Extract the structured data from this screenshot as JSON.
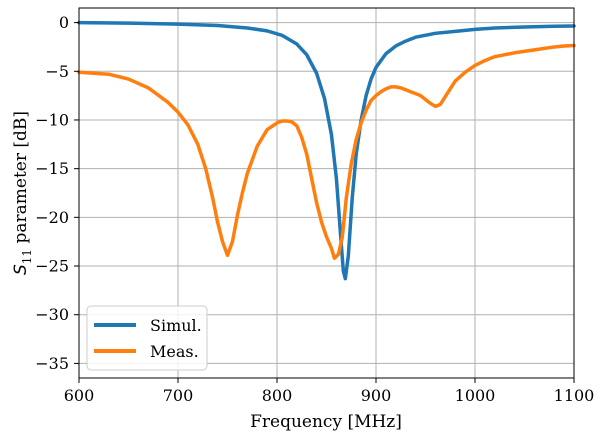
{
  "chart_data": {
    "type": "line",
    "title": "",
    "xlabel": "Frequency [MHz]",
    "ylabel_main": "S",
    "ylabel_sub": "11",
    "ylabel_rest": " parameter [dB]",
    "xlim": [
      600,
      1100
    ],
    "ylim": [
      -36.5,
      1.5
    ],
    "xticks": [
      600,
      700,
      800,
      900,
      1000,
      1100
    ],
    "yticks": [
      0,
      -5,
      -10,
      -15,
      -20,
      -25,
      -30,
      -35
    ],
    "xtick_labels": [
      "600",
      "700",
      "800",
      "900",
      "1000",
      "1100"
    ],
    "ytick_labels": [
      "0",
      "−5",
      "−10",
      "−15",
      "−20",
      "−25",
      "−30",
      "−35"
    ],
    "grid": true,
    "legend_position": "bottom-left",
    "series": [
      {
        "name": "Simul.",
        "color": "#1f77b4",
        "x": [
          600,
          650,
          700,
          740,
          770,
          790,
          805,
          820,
          830,
          840,
          848,
          855,
          860,
          864,
          867,
          869,
          872,
          876,
          880,
          885,
          890,
          895,
          900,
          910,
          920,
          930,
          940,
          960,
          980,
          1000,
          1020,
          1050,
          1080,
          1100
        ],
        "y": [
          0.0,
          -0.05,
          -0.15,
          -0.3,
          -0.55,
          -0.85,
          -1.3,
          -2.2,
          -3.3,
          -5.2,
          -7.8,
          -11.5,
          -16.0,
          -21.5,
          -25.5,
          -26.3,
          -24.0,
          -18.0,
          -13.5,
          -10.0,
          -7.5,
          -5.8,
          -4.6,
          -3.2,
          -2.4,
          -1.9,
          -1.5,
          -1.1,
          -0.9,
          -0.7,
          -0.55,
          -0.45,
          -0.38,
          -0.35
        ]
      },
      {
        "name": "Meas.",
        "color": "#ff7f0e",
        "x": [
          600,
          630,
          650,
          670,
          690,
          700,
          710,
          720,
          728,
          735,
          740,
          745,
          750,
          755,
          760,
          765,
          770,
          780,
          790,
          800,
          805,
          810,
          815,
          820,
          825,
          830,
          835,
          840,
          845,
          850,
          855,
          858,
          862,
          866,
          870,
          875,
          880,
          885,
          890,
          895,
          900,
          905,
          910,
          915,
          920,
          925,
          930,
          935,
          940,
          945,
          950,
          955,
          960,
          965,
          970,
          975,
          980,
          990,
          1000,
          1010,
          1020,
          1040,
          1060,
          1080,
          1090,
          1100
        ],
        "y": [
          -5.1,
          -5.3,
          -5.8,
          -6.7,
          -8.2,
          -9.2,
          -10.5,
          -12.5,
          -15.0,
          -18.0,
          -20.5,
          -22.5,
          -23.9,
          -22.5,
          -19.8,
          -17.5,
          -15.5,
          -12.7,
          -11.0,
          -10.3,
          -10.1,
          -10.1,
          -10.2,
          -10.6,
          -11.8,
          -13.5,
          -16.0,
          -18.5,
          -20.5,
          -22.0,
          -23.2,
          -24.2,
          -23.8,
          -22.0,
          -18.0,
          -14.5,
          -12.0,
          -10.3,
          -9.0,
          -8.0,
          -7.5,
          -7.1,
          -6.8,
          -6.6,
          -6.6,
          -6.7,
          -6.9,
          -7.1,
          -7.3,
          -7.5,
          -7.9,
          -8.3,
          -8.6,
          -8.4,
          -7.6,
          -6.8,
          -6.0,
          -5.1,
          -4.4,
          -3.9,
          -3.5,
          -3.1,
          -2.8,
          -2.5,
          -2.4,
          -2.35
        ]
      }
    ]
  }
}
